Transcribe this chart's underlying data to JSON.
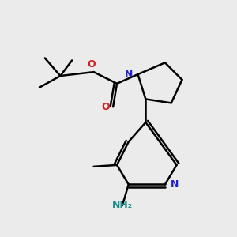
{
  "bg_color": "#ebebeb",
  "bond_color": "#000000",
  "bond_width": 1.8,
  "N_color": "#2222cc",
  "O_color": "#cc2222",
  "NH2_color": "#1a8a8a",
  "fig_size": [
    3.0,
    3.0
  ],
  "dpi": 100,
  "xlim": [
    0,
    300
  ],
  "ylim": [
    0,
    300
  ]
}
